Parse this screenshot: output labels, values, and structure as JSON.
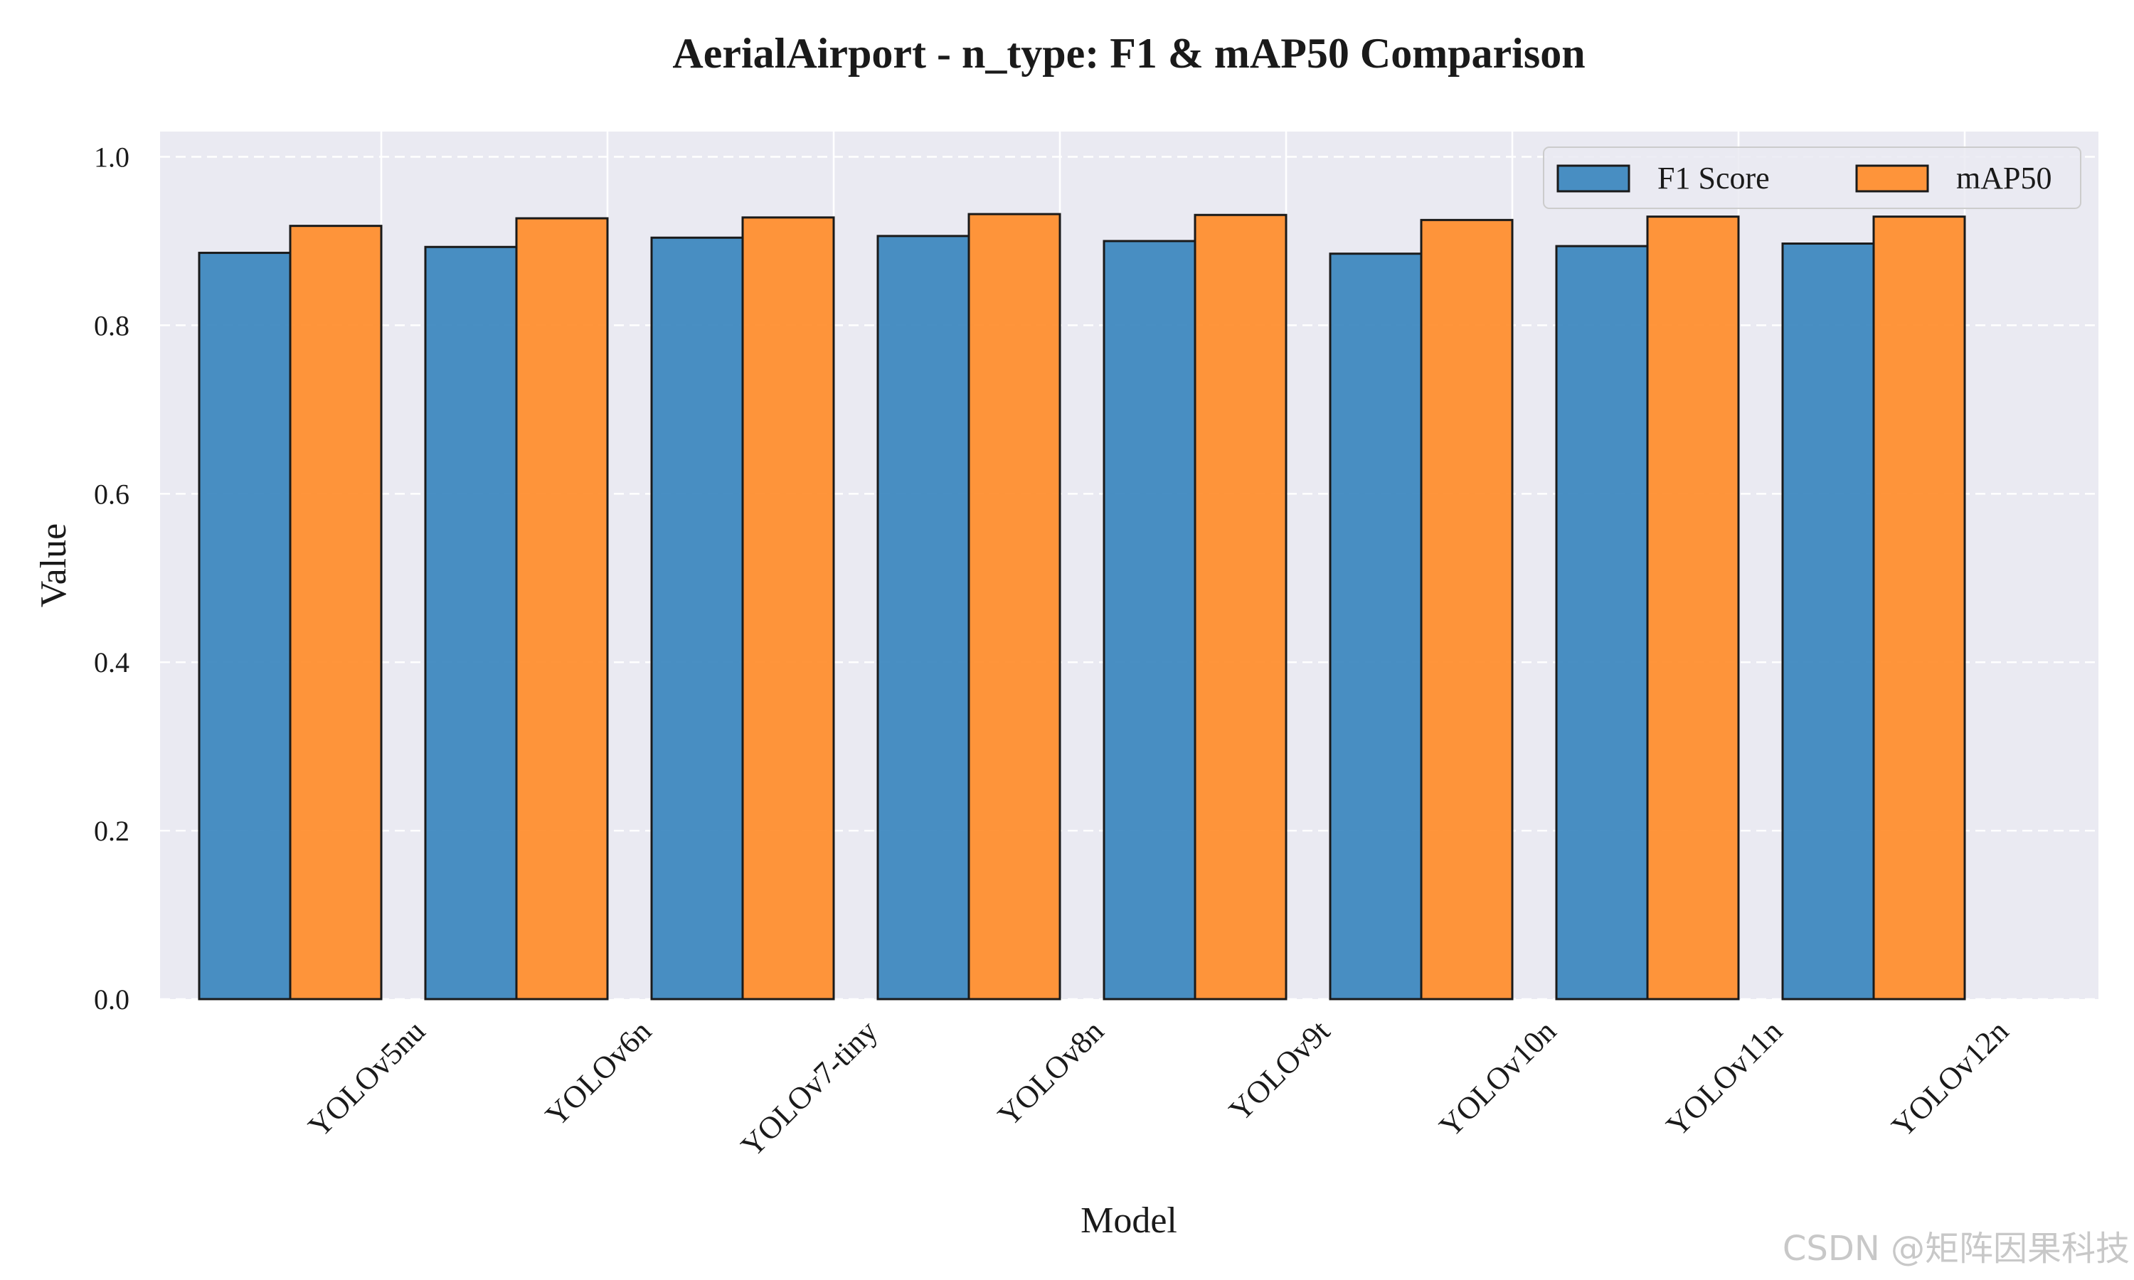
{
  "watermark": "CSDN @矩阵因果科技",
  "chart_data": {
    "type": "bar",
    "title": "AerialAirport - n_type: F1 & mAP50 Comparison",
    "xlabel": "Model",
    "ylabel": "Value",
    "ylim": [
      0,
      1.03
    ],
    "yticks": [
      0.0,
      0.2,
      0.4,
      0.6,
      0.8,
      1.0
    ],
    "ytick_labels": [
      "0.0",
      "0.2",
      "0.4",
      "0.6",
      "0.8",
      "1.0"
    ],
    "grid": true,
    "legend_position": "top-right",
    "categories": [
      "YOLOv5nu",
      "YOLOv6n",
      "YOLOv7-tiny",
      "YOLOv8n",
      "YOLOv9t",
      "YOLOv10n",
      "YOLOv11n",
      "YOLOv12n"
    ],
    "series": [
      {
        "name": "F1 Score",
        "color": "#3a85be",
        "values": [
          0.886,
          0.893,
          0.904,
          0.906,
          0.9,
          0.885,
          0.894,
          0.897
        ]
      },
      {
        "name": "mAP50",
        "color": "#ff8c2a",
        "values": [
          0.918,
          0.927,
          0.928,
          0.932,
          0.931,
          0.925,
          0.929,
          0.929
        ]
      }
    ],
    "background_color": "#eaeaf2"
  }
}
